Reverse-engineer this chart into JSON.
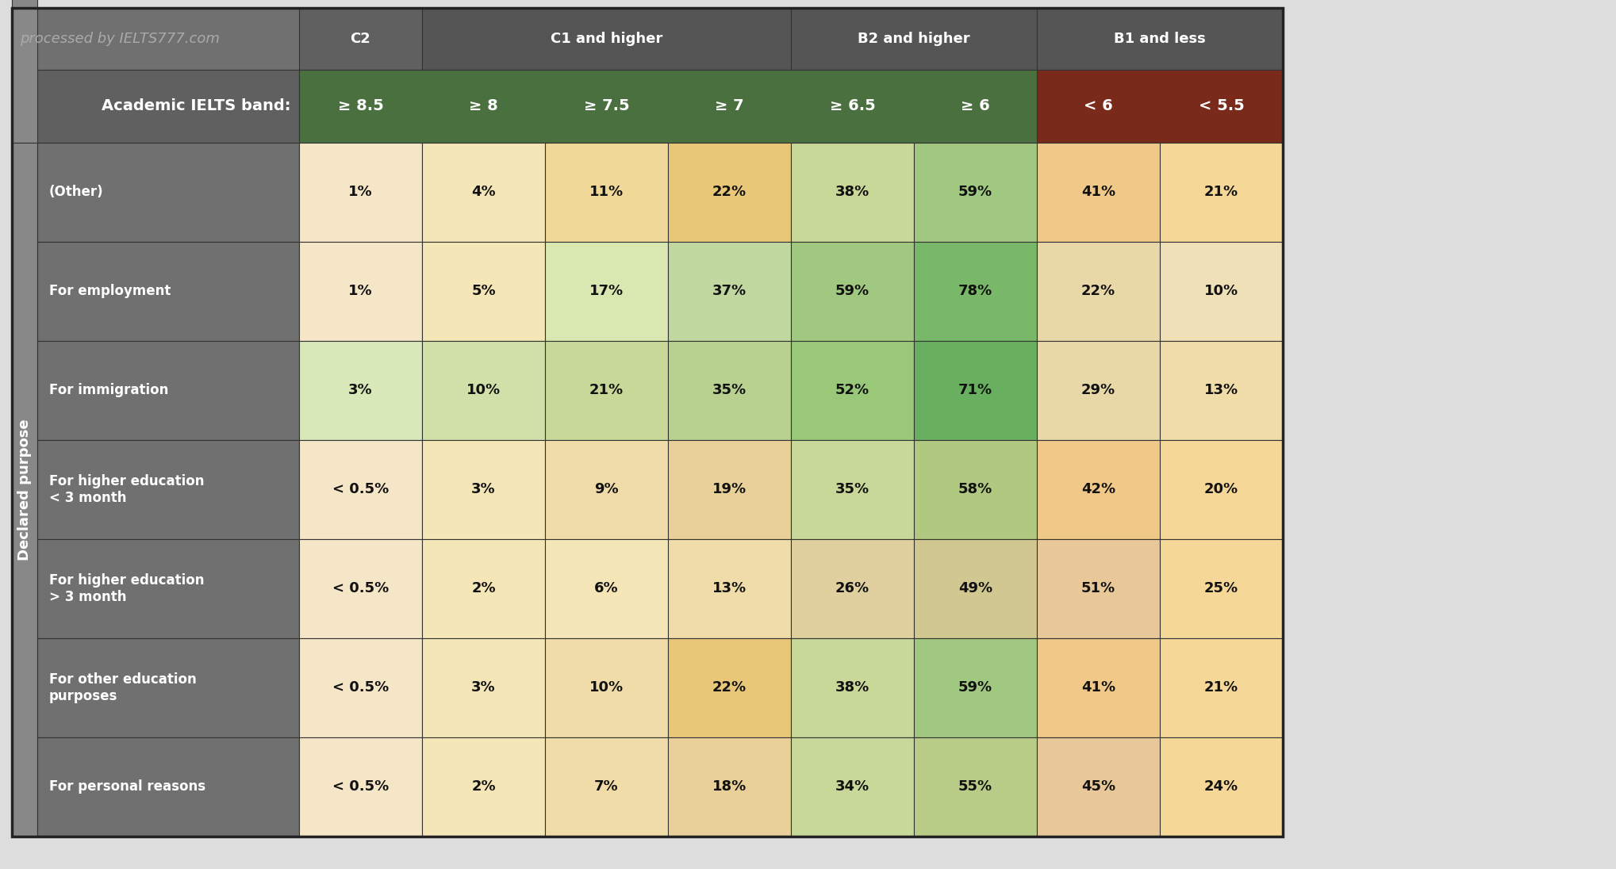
{
  "watermark": "processed by IELTS777.com",
  "title_label": "Academic IELTS band:",
  "col_groups": [
    {
      "label": "C2",
      "cols": 1,
      "bg": "#606060",
      "fg": "#ffffff"
    },
    {
      "label": "C1 and higher",
      "cols": 2,
      "bg": "#555555",
      "fg": "#ffffff"
    },
    {
      "label": "B2 and higher",
      "cols": 2,
      "bg": "#555555",
      "fg": "#ffffff"
    },
    {
      "label": "B1 and less",
      "cols": 2,
      "bg": "#555555",
      "fg": "#ffffff"
    }
  ],
  "band_labels": [
    "≥ 8.5",
    "≥ 8",
    "≥ 7.5",
    "≥ 7",
    "≥ 6.5",
    "≥ 6",
    "< 6",
    "< 5.5"
  ],
  "band_bg": [
    "#4a7040",
    "#4a7040",
    "#4a7040",
    "#4a7040",
    "#4a7040",
    "#4a7040",
    "#7a2020",
    "#7a2020"
  ],
  "row_labels": [
    "(Other)",
    "For employment",
    "For immigration",
    "For higher education\n< 3 month",
    "For higher education\n> 3 month",
    "For other education\npurposes",
    "For personal reasons"
  ],
  "data": [
    [
      "1%",
      "4%",
      "11%",
      "22%",
      "38%",
      "59%",
      "41%",
      "21%"
    ],
    [
      "1%",
      "5%",
      "17%",
      "37%",
      "59%",
      "78%",
      "22%",
      "10%"
    ],
    [
      "3%",
      "10%",
      "21%",
      "35%",
      "52%",
      "71%",
      "29%",
      "13%"
    ],
    [
      "< 0.5%",
      "3%",
      "9%",
      "19%",
      "35%",
      "58%",
      "42%",
      "20%"
    ],
    [
      "< 0.5%",
      "2%",
      "6%",
      "13%",
      "26%",
      "49%",
      "51%",
      "25%"
    ],
    [
      "< 0.5%",
      "3%",
      "10%",
      "22%",
      "38%",
      "59%",
      "41%",
      "21%"
    ],
    [
      "< 0.5%",
      "2%",
      "7%",
      "18%",
      "34%",
      "55%",
      "45%",
      "24%"
    ]
  ],
  "cell_colors": [
    [
      "#f5e6c8",
      "#f5e6b8",
      "#f0d898",
      "#e8c878",
      "#c8d898",
      "#a0c880",
      "#f0c888",
      "#f5d898"
    ],
    [
      "#f5e6c8",
      "#f5e6b8",
      "#d8e8b0",
      "#c0d8a0",
      "#a0c880",
      "#78b868",
      "#e8d8a8",
      "#f0e0b8"
    ],
    [
      "#d8e8b8",
      "#d0e0a8",
      "#c8d898",
      "#b8d090",
      "#98c878",
      "#68b060",
      "#e8d8a8",
      "#f0dca8"
    ],
    [
      "#f5e6c8",
      "#f5e6b8",
      "#f0dca8",
      "#e8d098",
      "#c8d898",
      "#b0c880",
      "#f0c888",
      "#f5d898"
    ],
    [
      "#f5e6c8",
      "#f5e6b8",
      "#f5e6b8",
      "#f0dca8",
      "#e0d0a0",
      "#d0c890",
      "#e8c898",
      "#f5d898"
    ],
    [
      "#f5e6c8",
      "#f5e6b8",
      "#f0dca8",
      "#e8c878",
      "#c8d898",
      "#a0c880",
      "#f0c888",
      "#f5d898"
    ],
    [
      "#f5e6c8",
      "#f5e6b8",
      "#f0dca8",
      "#e8d098",
      "#c8d898",
      "#b8cc88",
      "#e8c898",
      "#f5d898"
    ]
  ],
  "header_bg": "#606060",
  "header_fg": "#ffffff",
  "row_label_bg": "#707070",
  "row_label_fg": "#ffffff",
  "left_label_bg": "#888888",
  "left_label_fg": "#ffffff",
  "declared_purpose_label": "Declared purpose",
  "outer_border": "#333333",
  "watermark_color": "#aaaaaa",
  "watermark_fontsize": 13
}
